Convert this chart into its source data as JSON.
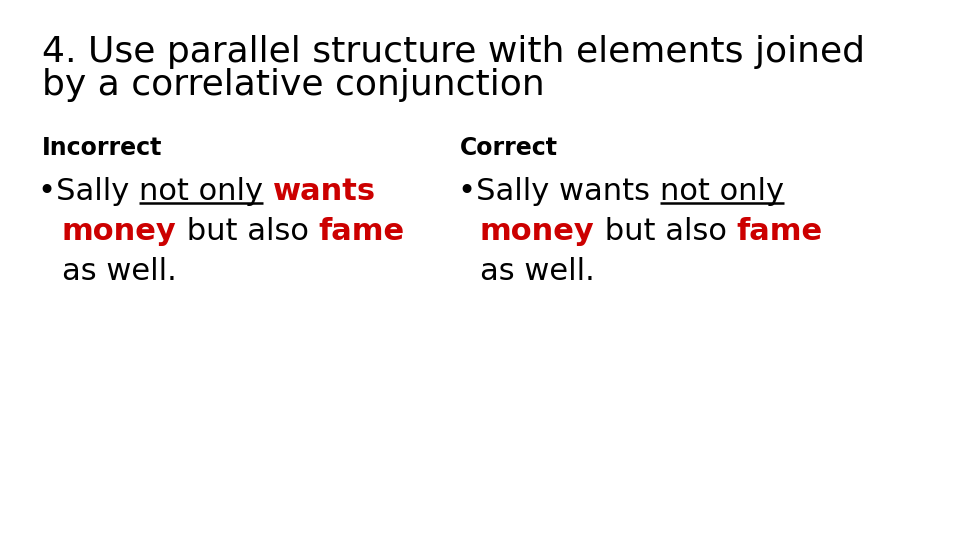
{
  "bg_color": "#ffffff",
  "title_line1": "4. Use parallel structure with elements joined",
  "title_line2": "by a correlative conjunction",
  "title_fontsize": 26,
  "title_color": "#000000",
  "incorrect_label": "Incorrect",
  "correct_label": "Correct",
  "label_fontsize": 17,
  "bullet_fontsize": 22,
  "red_color": "#cc0000",
  "black_color": "#000000",
  "fig_width": 9.6,
  "fig_height": 5.4,
  "dpi": 100
}
